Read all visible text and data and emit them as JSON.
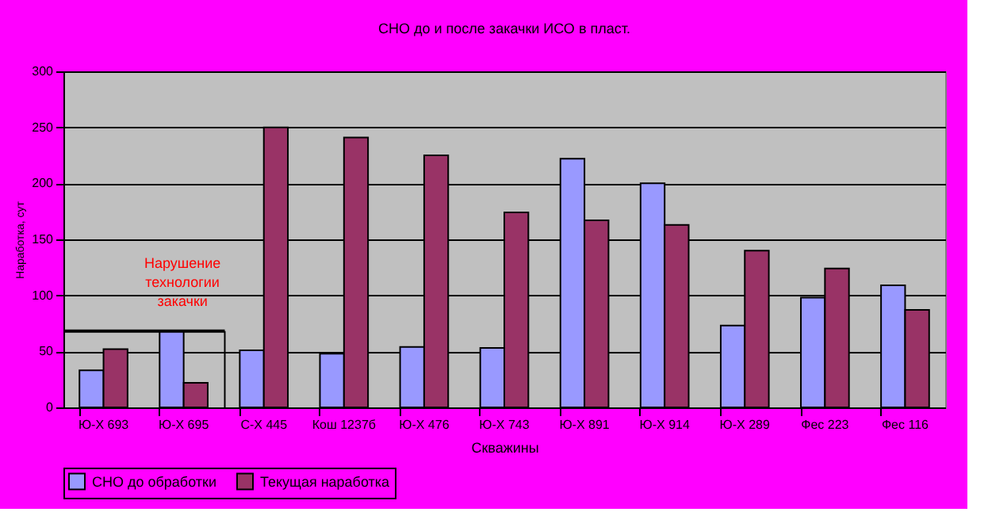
{
  "chart_data": {
    "type": "bar",
    "title": "СНО до и после закачки ИСО в пласт.",
    "xlabel": "Скважины",
    "ylabel": "Наработка, сут",
    "categories": [
      "Ю-Х 693",
      "Ю-Х 695",
      "С-Х 445",
      "Кош 1237б",
      "Ю-Х 476",
      "Ю-Х 743",
      "Ю-Х 891",
      "Ю-Х 914",
      "Ю-Х 289",
      "Фес 223",
      "Фес 116"
    ],
    "series": [
      {
        "name": "СНО до обработки",
        "color": "#9999ff",
        "values": [
          33,
          68,
          51,
          48,
          54,
          53,
          222,
          200,
          73,
          98,
          109
        ]
      },
      {
        "name": "Текущая наработка",
        "color": "#993366",
        "values": [
          52,
          22,
          250,
          241,
          225,
          174,
          167,
          163,
          140,
          124,
          87
        ]
      }
    ],
    "ylim": [
      0,
      300
    ],
    "yticks": [
      0,
      50,
      100,
      150,
      200,
      250,
      300
    ],
    "grid": "y",
    "legend": "bottom",
    "annotations": [
      "Нарушение технологии закачки"
    ]
  }
}
